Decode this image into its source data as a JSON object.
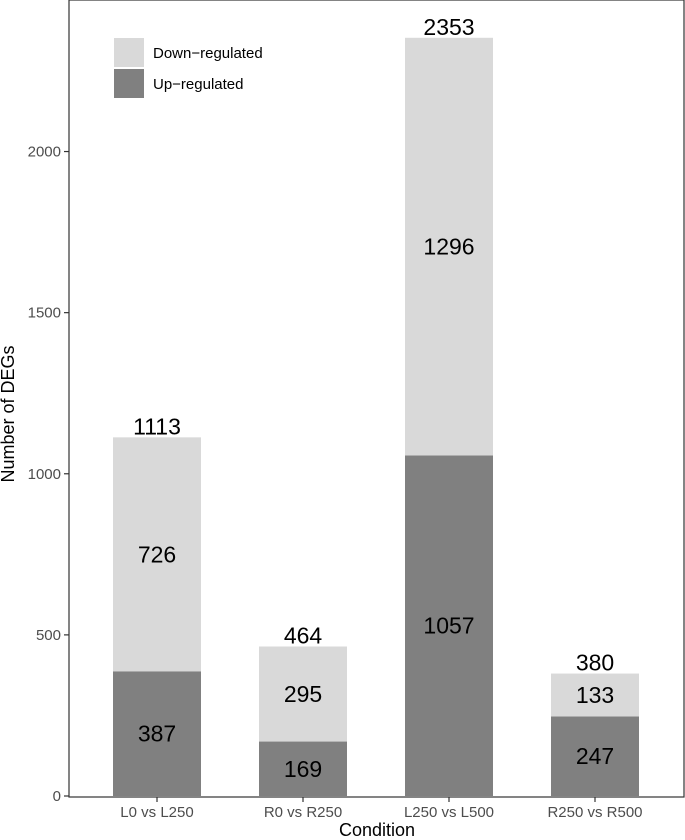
{
  "chart_data": {
    "type": "bar",
    "stacked": true,
    "categories": [
      "L0 vs L250",
      "R0 vs R250",
      "L250 vs L500",
      "R250 vs R500"
    ],
    "series": [
      {
        "name": "Up−regulated",
        "values": [
          387,
          169,
          1057,
          247
        ],
        "color": "#808080"
      },
      {
        "name": "Down−regulated",
        "values": [
          726,
          295,
          1296,
          133
        ],
        "color": "#d9d9d9"
      }
    ],
    "totals": [
      1113,
      464,
      2353,
      380
    ],
    "xlabel": "Condition",
    "ylabel": "Number of DEGs",
    "ylim": [
      0,
      2450
    ],
    "yticks": [
      0,
      500,
      1000,
      1500,
      2000
    ],
    "grid": false,
    "legend_position": "top-left"
  }
}
